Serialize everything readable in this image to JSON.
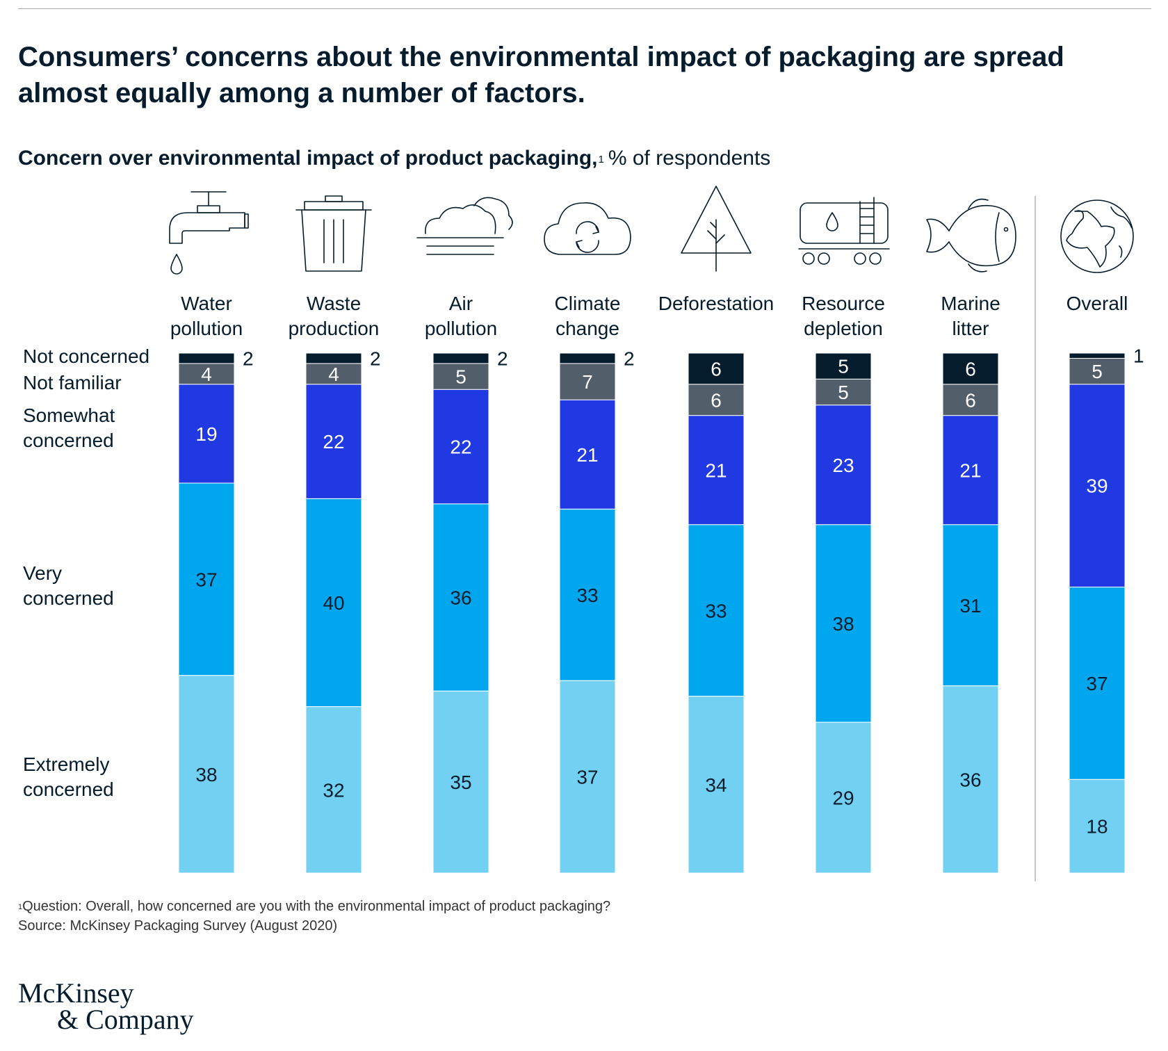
{
  "header": {
    "headline": "Consumers’ concerns about the environmental impact of packaging are spread almost equally among a number of factors.",
    "subtitle_bold": "Concern over environmental impact of product packaging,",
    "subtitle_sup": "1",
    "subtitle_rest": "% of respondents"
  },
  "footnote": {
    "sup": "1",
    "question": "Question: Overall, how concerned are you with the environmental impact of product packaging?",
    "source": "Source: McKinsey Packaging Survey (August 2020)"
  },
  "logo": {
    "line1": "McKinsey",
    "line2": "& Company"
  },
  "colors": {
    "not_concerned": "#051c2c",
    "not_familiar": "#525f6b",
    "somewhat": "#2139e3",
    "very": "#00a7ee",
    "extremely": "#72d1f2"
  },
  "icons": [
    "faucet-icon",
    "trash-can-icon",
    "cloud-fog-icon",
    "cloud-cycle-icon",
    "tree-icon",
    "tanker-icon",
    "fish-icon",
    "globe-icon"
  ],
  "chart_data": {
    "type": "bar",
    "stacked": true,
    "orientation": "vertical",
    "categories": [
      [
        "Water",
        "pollution"
      ],
      [
        "Waste",
        "production"
      ],
      [
        "Air",
        "pollution"
      ],
      [
        "Climate",
        "change"
      ],
      [
        "Deforestation"
      ],
      [
        "Resource",
        "depletion"
      ],
      [
        "Marine",
        "litter"
      ],
      [
        "Overall"
      ]
    ],
    "segment_labels": [
      [
        "Not concerned"
      ],
      [
        "Not familiar"
      ],
      [
        "Somewhat",
        "concerned"
      ],
      [
        "Very",
        "concerned"
      ],
      [
        "Extremely",
        "concerned"
      ]
    ],
    "series": [
      {
        "name": "Not concerned",
        "values": [
          2,
          2,
          2,
          2,
          6,
          5,
          6,
          1
        ]
      },
      {
        "name": "Not familiar",
        "values": [
          4,
          4,
          5,
          7,
          6,
          5,
          6,
          5
        ]
      },
      {
        "name": "Somewhat concerned",
        "values": [
          19,
          22,
          22,
          21,
          21,
          23,
          21,
          39
        ]
      },
      {
        "name": "Very concerned",
        "values": [
          37,
          40,
          36,
          33,
          33,
          38,
          31,
          37
        ]
      },
      {
        "name": "Extremely concerned",
        "values": [
          38,
          32,
          35,
          37,
          34,
          29,
          36,
          18
        ]
      }
    ],
    "ylim": [
      0,
      100
    ]
  }
}
